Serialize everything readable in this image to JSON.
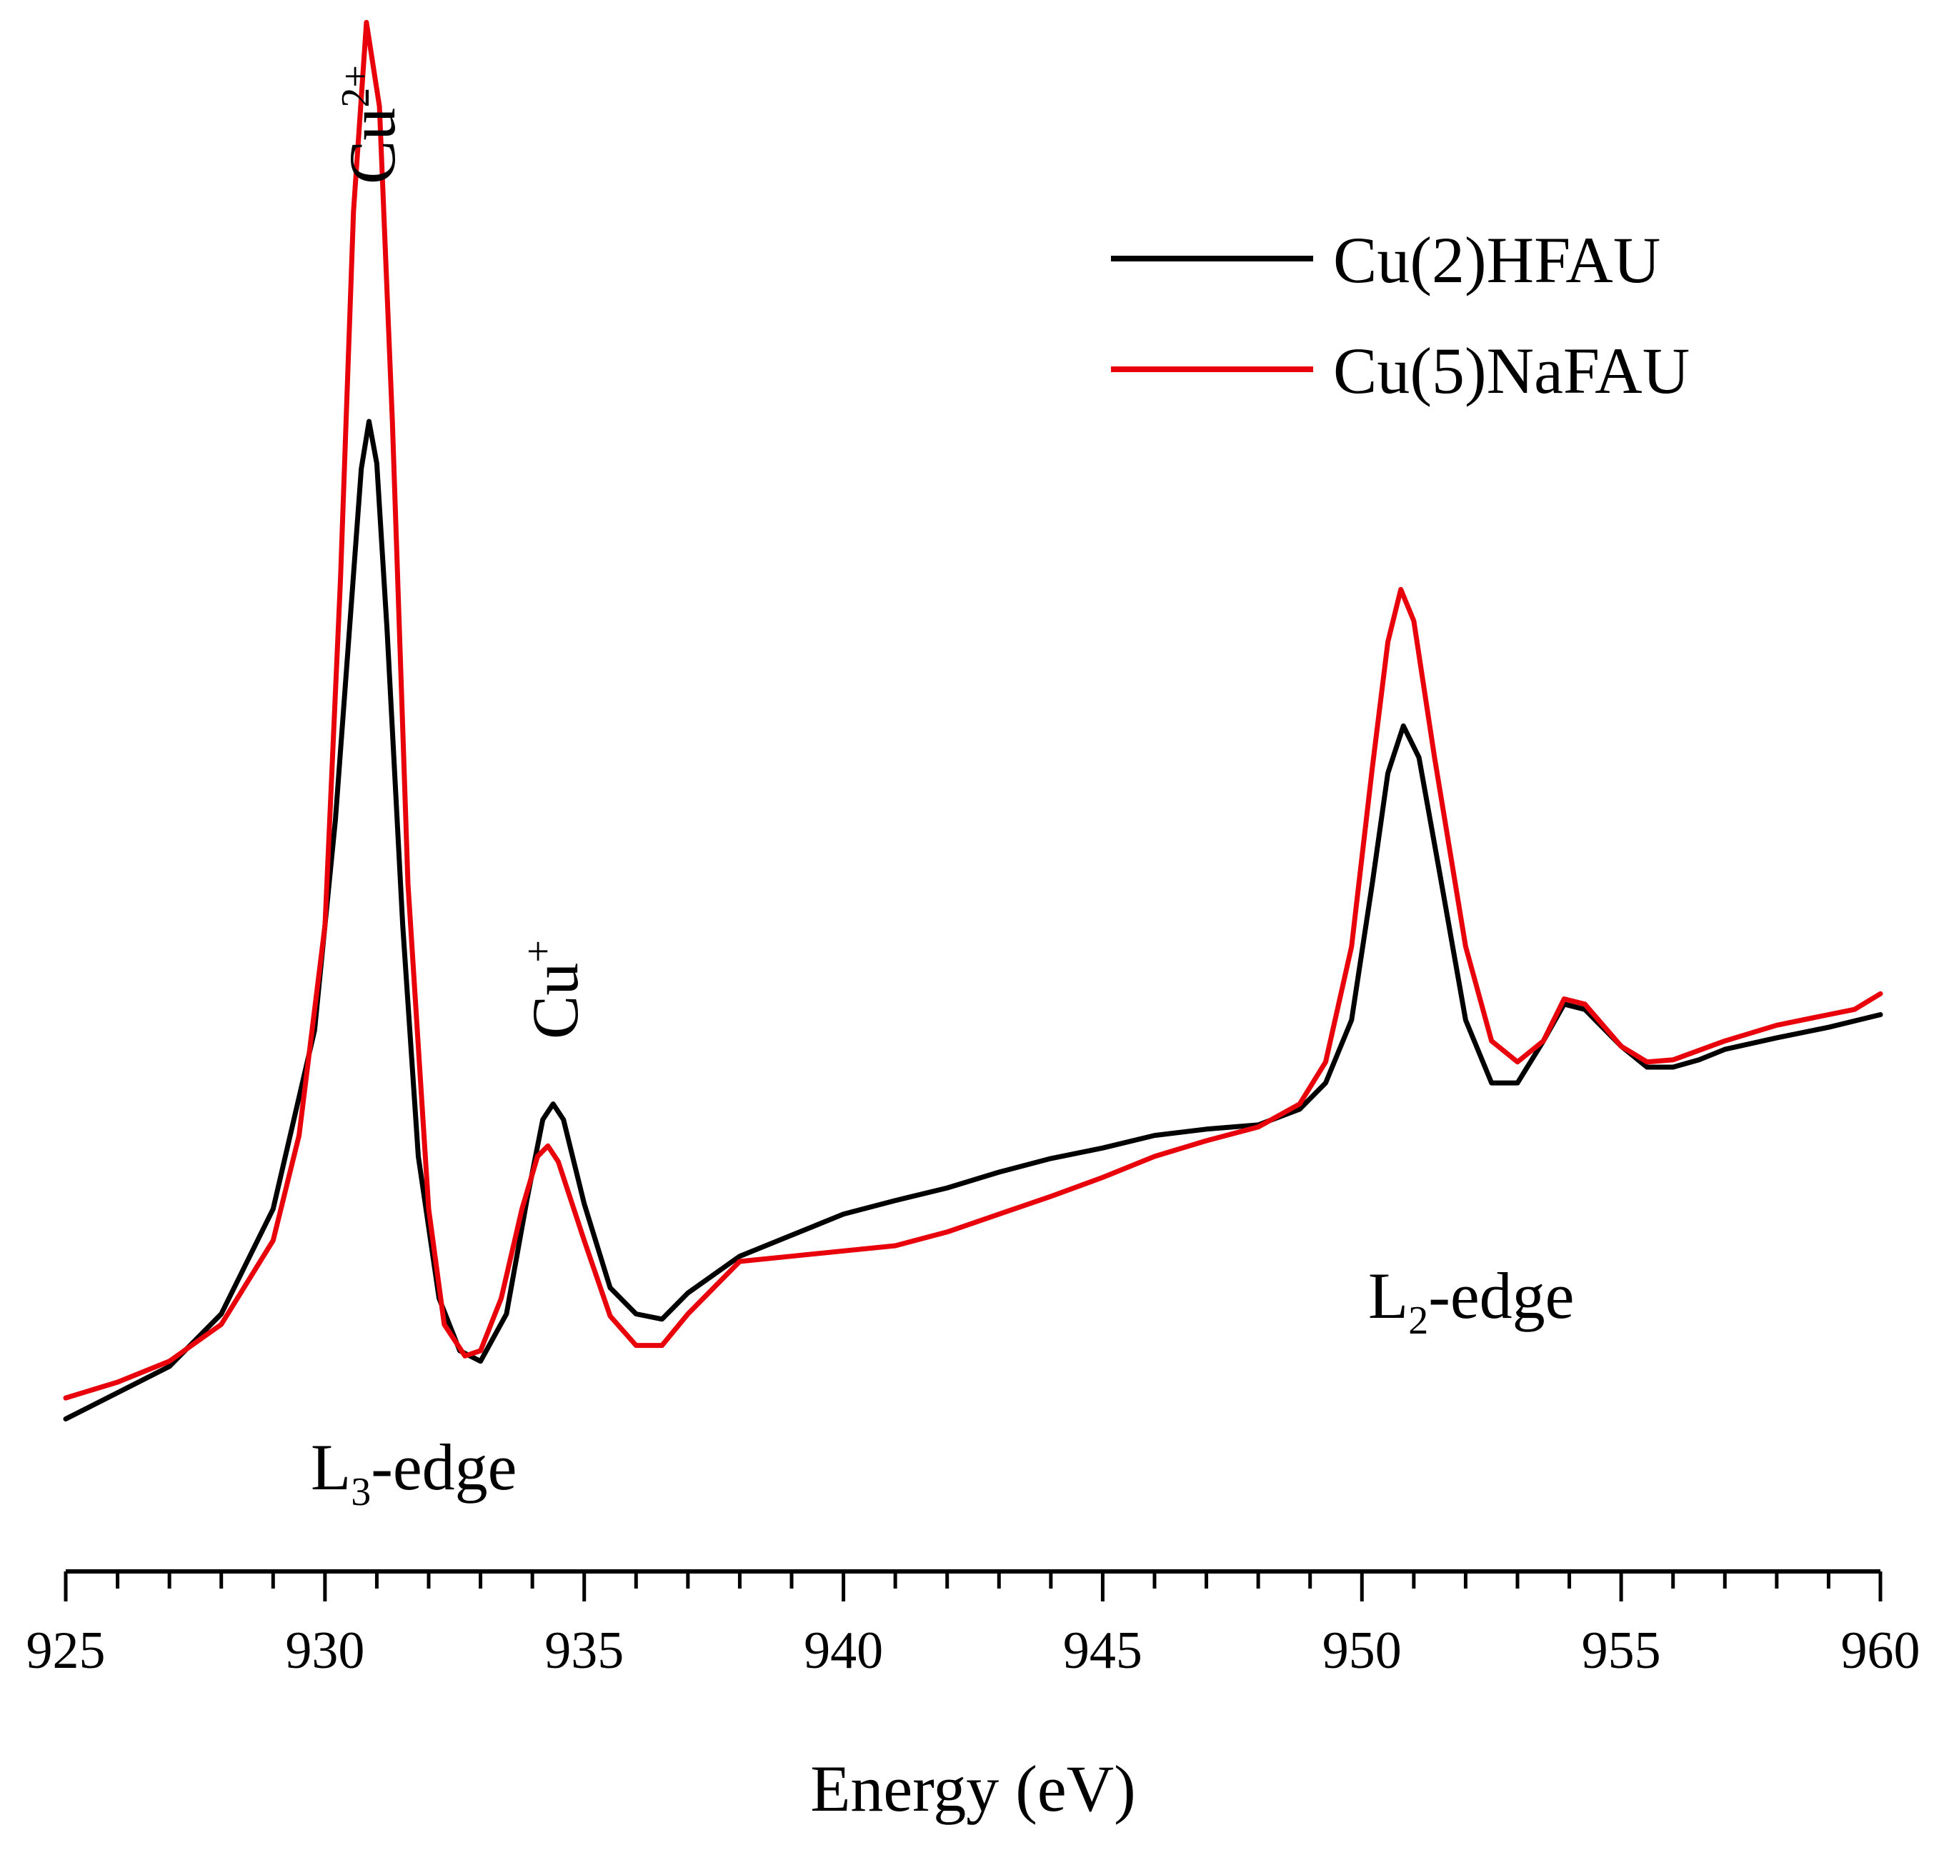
{
  "chart_data": {
    "type": "line",
    "title": "",
    "xlabel": "Energy (eV)",
    "ylabel": "",
    "xlim": [
      925,
      960
    ],
    "x_ticks": [
      925,
      930,
      935,
      940,
      945,
      950,
      955,
      960
    ],
    "x_tick_labels": [
      "925",
      "930",
      "935",
      "940",
      "945",
      "950",
      "955",
      "960"
    ],
    "minor_tick_step": 1,
    "y_axis_visible": false,
    "grid": false,
    "legend_position": "top-right",
    "series": [
      {
        "name": "Cu(2)HFAU",
        "color": "#000000",
        "x": [
          925,
          926,
          927,
          928,
          929,
          929.8,
          930.2,
          930.5,
          930.7,
          930.85,
          931,
          931.2,
          931.5,
          931.8,
          932.2,
          932.6,
          933,
          933.5,
          933.9,
          934.2,
          934.4,
          934.6,
          935,
          935.5,
          936,
          936.5,
          937,
          938,
          939,
          940,
          941,
          942,
          943,
          944,
          945,
          946,
          947,
          948,
          948.8,
          949.3,
          949.8,
          950.2,
          950.5,
          950.8,
          951.1,
          951.5,
          952,
          952.5,
          953,
          953.5,
          953.9,
          954.3,
          955,
          955.5,
          956,
          956.5,
          957,
          958,
          959,
          960
        ],
        "values": [
          0.05,
          0.075,
          0.1,
          0.15,
          0.25,
          0.42,
          0.62,
          0.82,
          0.955,
          1.0,
          0.96,
          0.8,
          0.52,
          0.3,
          0.165,
          0.115,
          0.105,
          0.15,
          0.26,
          0.335,
          0.35,
          0.335,
          0.255,
          0.175,
          0.15,
          0.145,
          0.17,
          0.205,
          0.225,
          0.245,
          0.258,
          0.27,
          0.285,
          0.298,
          0.308,
          0.32,
          0.326,
          0.33,
          0.345,
          0.37,
          0.43,
          0.56,
          0.665,
          0.71,
          0.68,
          0.57,
          0.43,
          0.37,
          0.37,
          0.41,
          0.445,
          0.44,
          0.405,
          0.385,
          0.385,
          0.392,
          0.402,
          0.413,
          0.423,
          0.435
        ]
      },
      {
        "name": "Cu(5)NaFAU",
        "color": "#e8000b",
        "x": [
          925,
          926,
          927,
          928,
          929,
          929.5,
          930,
          930.3,
          930.55,
          930.8,
          931.05,
          931.3,
          931.6,
          932,
          932.3,
          932.7,
          933,
          933.4,
          933.8,
          934.1,
          934.3,
          934.5,
          935,
          935.5,
          936,
          936.5,
          937,
          938,
          939,
          940,
          941,
          942,
          943,
          944,
          945,
          946,
          947,
          948,
          948.8,
          949.3,
          949.8,
          950.2,
          950.5,
          950.75,
          951,
          951.4,
          952,
          952.5,
          953,
          953.5,
          953.9,
          954.3,
          955,
          955.5,
          956,
          957,
          958,
          959,
          959.5,
          960
        ],
        "values": [
          0.07,
          0.085,
          0.105,
          0.14,
          0.22,
          0.32,
          0.52,
          0.85,
          1.2,
          1.38,
          1.3,
          1.0,
          0.56,
          0.25,
          0.14,
          0.11,
          0.115,
          0.165,
          0.25,
          0.3,
          0.31,
          0.295,
          0.22,
          0.148,
          0.12,
          0.12,
          0.15,
          0.2,
          0.205,
          0.21,
          0.215,
          0.228,
          0.245,
          0.262,
          0.28,
          0.3,
          0.315,
          0.328,
          0.35,
          0.39,
          0.5,
          0.67,
          0.79,
          0.84,
          0.81,
          0.68,
          0.5,
          0.41,
          0.39,
          0.41,
          0.45,
          0.445,
          0.405,
          0.39,
          0.392,
          0.41,
          0.425,
          0.435,
          0.44,
          0.455
        ]
      }
    ],
    "annotations": [
      {
        "base": "Cu",
        "sup": "2+",
        "x": 930.85,
        "rotated": true
      },
      {
        "base": "Cu",
        "sup": "+",
        "x": 934.35,
        "rotated": true
      },
      {
        "base": "L",
        "sub": "3",
        "rest": "-edge",
        "x": 927.5
      },
      {
        "base": "L",
        "sub": "2",
        "rest": "-edge",
        "x": 950
      }
    ]
  }
}
